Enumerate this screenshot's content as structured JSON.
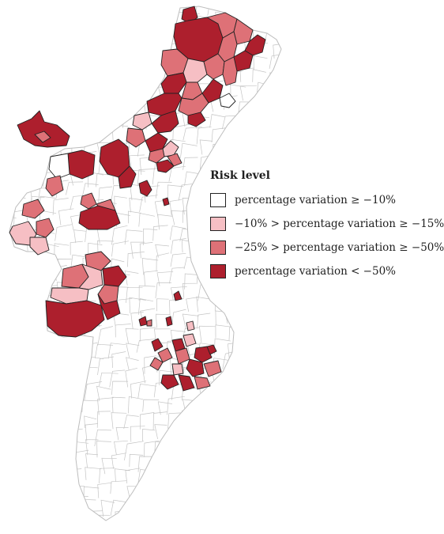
{
  "legend": {
    "title": "Risk level",
    "items": [
      {
        "label": "percentage variation ≥ −10%",
        "color": "#ffffff"
      },
      {
        "label": "−10% > percentage variation ≥ −15%",
        "color": "#f6bfc4"
      },
      {
        "label": "−25% > percentage variation ≥ −50%",
        "color": "#de7177"
      },
      {
        "label": "percentage variation < −50%",
        "color": "#ad1f2d"
      }
    ]
  },
  "colors": {
    "outline": "#222222",
    "municipal_border": "#c4c4c4"
  }
}
